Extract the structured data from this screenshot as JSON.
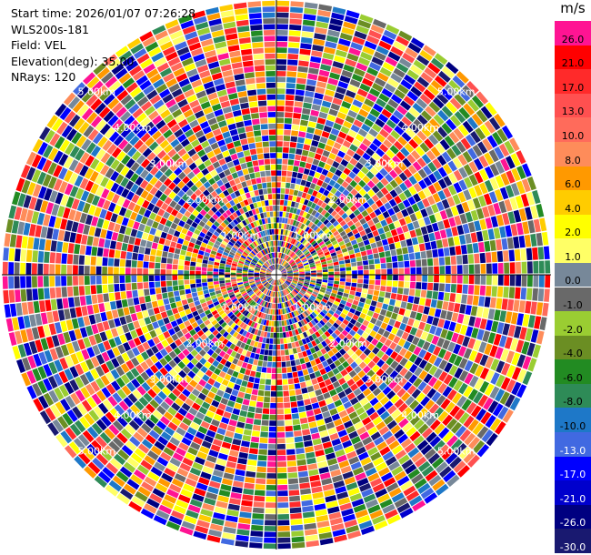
{
  "info": {
    "start_time": "Start time: 2026/01/07 07:26:28",
    "instrument": "WLS200s-181",
    "field": "Field: VEL",
    "elevation": "Elevation(deg): 35.00",
    "nrays": "NRays: 120"
  },
  "colorbar": {
    "unit": "m/s",
    "labels": [
      "26.0",
      "21.0",
      "17.0",
      "13.0",
      "10.0",
      "8.0",
      "6.0",
      "4.0",
      "2.0",
      "1.0",
      "0.0",
      "-1.0",
      "-2.0",
      "-4.0",
      "-6.0",
      "-8.0",
      "-10.0",
      "-13.0",
      "-17.0",
      "-21.0",
      "-26.0",
      "-30.0"
    ],
    "colors": [
      "#ff1493",
      "#ff0000",
      "#ff2a2a",
      "#ff5050",
      "#ff6b5b",
      "#fe8c5a",
      "#ff9900",
      "#ffcc00",
      "#ffff00",
      "#ffff66",
      "#778899",
      "#696969",
      "#9acd32",
      "#6b8e23",
      "#228b22",
      "#2e8b57",
      "#1e78c8",
      "#4169e1",
      "#0000ff",
      "#0000cd",
      "#000080",
      "#191970"
    ]
  },
  "chart_data": {
    "type": "ppi",
    "field": "VEL",
    "units": "m/s",
    "nrays": 120,
    "elevation_deg": 35.0,
    "range_rings_km": [
      1.0,
      2.0,
      3.0,
      4.0,
      5.0
    ],
    "range_ring_labels": [
      "1.00km",
      "2.00km",
      "3.00km",
      "4.00km",
      "5.00km"
    ],
    "max_range_km": 5.4,
    "value_range": [
      -30,
      30
    ],
    "random_seed": 181
  }
}
